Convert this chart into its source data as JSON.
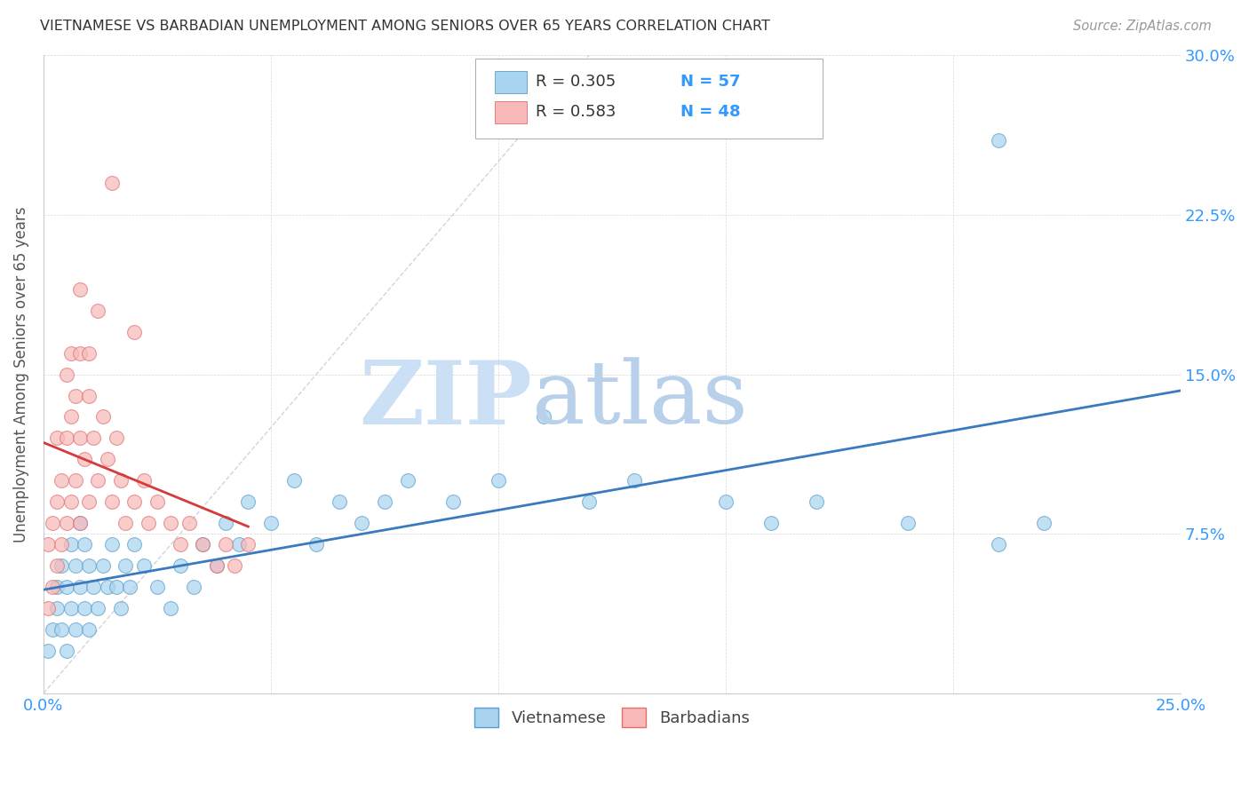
{
  "title": "VIETNAMESE VS BARBADIAN UNEMPLOYMENT AMONG SENIORS OVER 65 YEARS CORRELATION CHART",
  "source": "Source: ZipAtlas.com",
  "ylabel": "Unemployment Among Seniors over 65 years",
  "xlim": [
    0.0,
    0.25
  ],
  "ylim": [
    0.0,
    0.3
  ],
  "R_vietnamese": 0.305,
  "N_vietnamese": 57,
  "R_barbadian": 0.583,
  "N_barbadian": 48,
  "vietnamese_color": "#a8d4f0",
  "vietnamese_edge": "#5b9ec9",
  "barbadian_color": "#f9b8b8",
  "barbadian_edge": "#e07070",
  "trendline_vietnamese_color": "#3a7abf",
  "trendline_barbadian_color": "#d63a3a",
  "diagonal_color": "#d0d0d0",
  "legend_text_color": "#3399ff",
  "tick_color": "#3399ff",
  "grid_color": "#d8d8d8",
  "watermark_zip_color": "#cce0f5",
  "watermark_atlas_color": "#b8d0ea",
  "viet_x": [
    0.001,
    0.002,
    0.003,
    0.003,
    0.004,
    0.004,
    0.005,
    0.005,
    0.006,
    0.006,
    0.007,
    0.007,
    0.008,
    0.008,
    0.009,
    0.009,
    0.01,
    0.01,
    0.011,
    0.012,
    0.013,
    0.014,
    0.015,
    0.016,
    0.017,
    0.018,
    0.019,
    0.02,
    0.022,
    0.025,
    0.028,
    0.03,
    0.033,
    0.035,
    0.038,
    0.04,
    0.043,
    0.045,
    0.05,
    0.055,
    0.06,
    0.065,
    0.07,
    0.075,
    0.08,
    0.09,
    0.1,
    0.11,
    0.12,
    0.13,
    0.15,
    0.16,
    0.17,
    0.19,
    0.21,
    0.22,
    0.21
  ],
  "viet_y": [
    0.02,
    0.03,
    0.04,
    0.05,
    0.03,
    0.06,
    0.02,
    0.05,
    0.04,
    0.07,
    0.03,
    0.06,
    0.05,
    0.08,
    0.04,
    0.07,
    0.03,
    0.06,
    0.05,
    0.04,
    0.06,
    0.05,
    0.07,
    0.05,
    0.04,
    0.06,
    0.05,
    0.07,
    0.06,
    0.05,
    0.04,
    0.06,
    0.05,
    0.07,
    0.06,
    0.08,
    0.07,
    0.09,
    0.08,
    0.1,
    0.07,
    0.09,
    0.08,
    0.09,
    0.1,
    0.09,
    0.1,
    0.13,
    0.09,
    0.1,
    0.09,
    0.08,
    0.09,
    0.08,
    0.07,
    0.08,
    0.26
  ],
  "barb_x": [
    0.001,
    0.001,
    0.002,
    0.002,
    0.003,
    0.003,
    0.003,
    0.004,
    0.004,
    0.005,
    0.005,
    0.005,
    0.006,
    0.006,
    0.006,
    0.007,
    0.007,
    0.008,
    0.008,
    0.008,
    0.009,
    0.01,
    0.01,
    0.011,
    0.012,
    0.013,
    0.014,
    0.015,
    0.016,
    0.017,
    0.018,
    0.02,
    0.022,
    0.023,
    0.025,
    0.028,
    0.03,
    0.032,
    0.035,
    0.038,
    0.04,
    0.042,
    0.045,
    0.008,
    0.01,
    0.015,
    0.012,
    0.02
  ],
  "barb_y": [
    0.04,
    0.07,
    0.05,
    0.08,
    0.06,
    0.09,
    0.12,
    0.07,
    0.1,
    0.08,
    0.12,
    0.15,
    0.09,
    0.13,
    0.16,
    0.1,
    0.14,
    0.08,
    0.12,
    0.16,
    0.11,
    0.09,
    0.14,
    0.12,
    0.1,
    0.13,
    0.11,
    0.09,
    0.12,
    0.1,
    0.08,
    0.09,
    0.1,
    0.08,
    0.09,
    0.08,
    0.07,
    0.08,
    0.07,
    0.06,
    0.07,
    0.06,
    0.07,
    0.19,
    0.16,
    0.24,
    0.18,
    0.17
  ]
}
